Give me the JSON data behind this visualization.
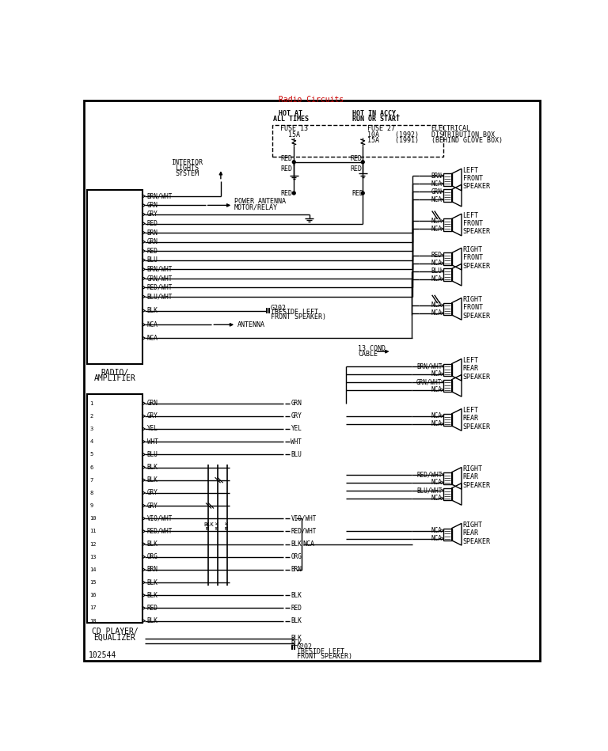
{
  "title": "Radio Circuits",
  "title_color": "#cc0000",
  "bg_color": "#ffffff",
  "line_color": "#000000",
  "font_family": "monospace",
  "footnote": "102544",
  "radio_wires": [
    "BRN/WHT",
    "GRN",
    "GRY",
    "RED",
    "BRN",
    "GRN",
    "RED",
    "BLU",
    "BRN/WHT",
    "GRN/WHT",
    "RED/WHT",
    "BLU/WHT",
    "BLK",
    "NCA",
    "NCA"
  ],
  "cd_wires": [
    [
      "1",
      "GRN",
      "GRN"
    ],
    [
      "2",
      "GRY",
      "GRY"
    ],
    [
      "3",
      "YEL",
      "YEL"
    ],
    [
      "4",
      "WHT",
      "WHT"
    ],
    [
      "5",
      "BLU",
      "BLU"
    ],
    [
      "6",
      "BLK",
      ""
    ],
    [
      "7",
      "BLK",
      ""
    ],
    [
      "8",
      "GRY",
      ""
    ],
    [
      "9",
      "GRY",
      ""
    ],
    [
      "10",
      "VIO/WHT",
      "VIO/WHT"
    ],
    [
      "11",
      "RED/WHT",
      "RED/WHT"
    ],
    [
      "12",
      "BLK",
      "BLK"
    ],
    [
      "13",
      "ORG",
      "ORG"
    ],
    [
      "14",
      "BRN",
      "BRN"
    ],
    [
      "15",
      "BLK",
      ""
    ],
    [
      "16",
      "BLK",
      "BLK"
    ],
    [
      "17",
      "RED",
      "RED"
    ],
    [
      "18",
      "BLK",
      "BLK"
    ]
  ]
}
